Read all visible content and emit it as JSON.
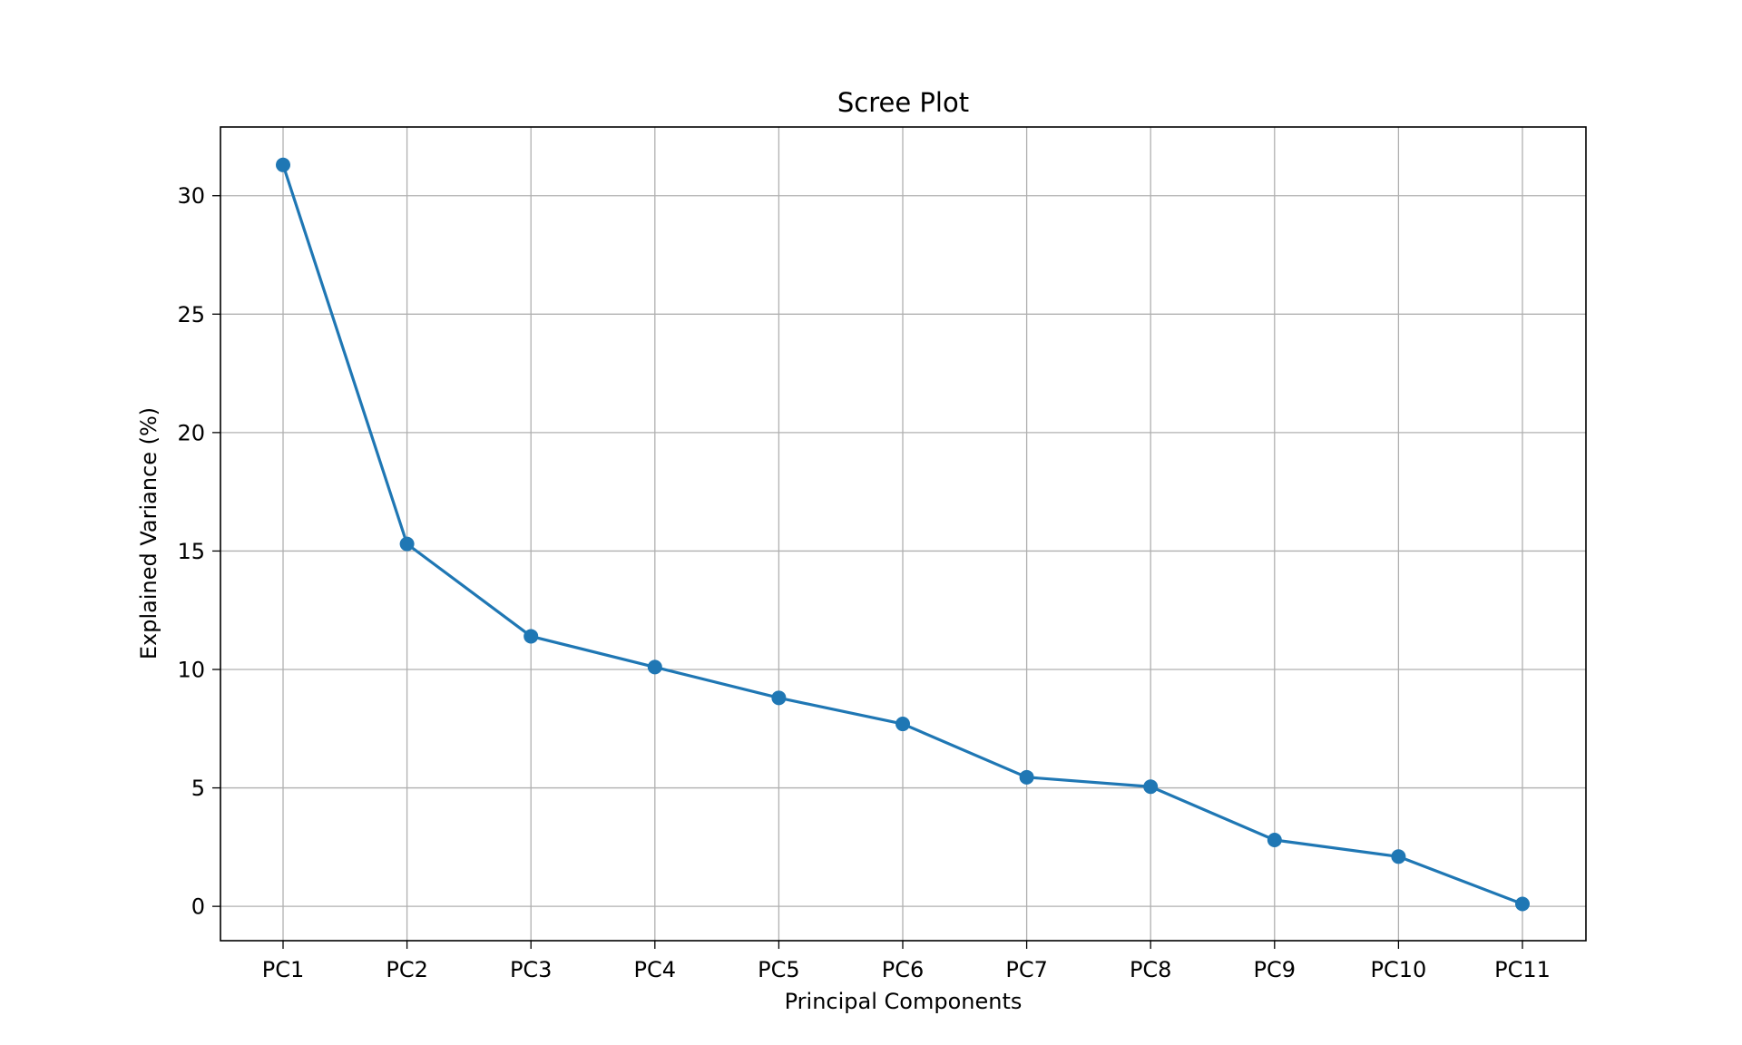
{
  "chart_data": {
    "type": "line",
    "title": "Scree Plot",
    "xlabel": "Principal Components",
    "ylabel": "Explained Variance (%)",
    "categories": [
      "PC1",
      "PC2",
      "PC3",
      "PC4",
      "PC5",
      "PC6",
      "PC7",
      "PC8",
      "PC9",
      "PC10",
      "PC11"
    ],
    "series": [
      {
        "values": [
          31.3,
          15.3,
          11.4,
          10.1,
          8.8,
          7.7,
          5.45,
          5.05,
          2.8,
          2.1,
          0.1
        ]
      }
    ],
    "ylim": [
      -1.45,
      32.9
    ],
    "yticks": [
      0,
      5,
      10,
      15,
      20,
      25,
      30
    ],
    "grid": true,
    "marker": "circle",
    "color": "#1f77b4"
  }
}
